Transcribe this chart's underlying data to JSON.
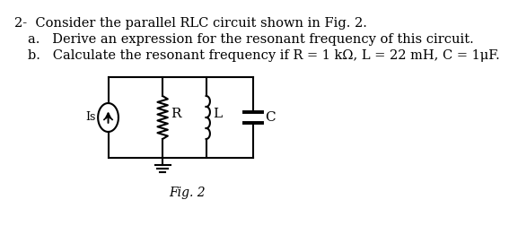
{
  "title_line": "2-  Consider the parallel RLC circuit shown in Fig. 2.",
  "item_a": "a.   Derive an expression for the resonant frequency of this circuit.",
  "item_b": "b.   Calculate the resonant frequency if R = 1 kΩ, L = 22 mH, C = 1μF.",
  "fig_label": "Fig. 2",
  "label_Is": "Is",
  "label_R": "R",
  "label_L": "L",
  "label_C": "C",
  "bg_color": "#ffffff",
  "text_color": "#000000",
  "line_color": "#000000",
  "title_fontsize": 10.5,
  "body_fontsize": 10.5
}
